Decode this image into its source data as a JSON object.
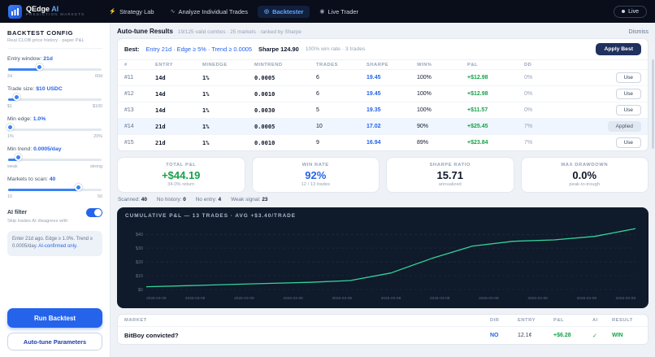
{
  "header": {
    "logo_name": "QEdge",
    "logo_ai": "AI",
    "logo_subtitle": "PREDICTION MARKETS",
    "nav": [
      {
        "label": "Strategy Lab"
      },
      {
        "label": "Analyze Individual Trades"
      },
      {
        "label": "Backtester"
      },
      {
        "label": "Live Trader"
      }
    ],
    "live_button": "Live"
  },
  "sidebar": {
    "title": "BACKTEST CONFIG",
    "subtitle": "Real CLOB price history · paper P&L",
    "sliders": [
      {
        "label": "Entry window:",
        "value": "21d",
        "min": "2d",
        "max": "60d",
        "pct": 33
      },
      {
        "label": "Trade size:",
        "value": "$10 USDC",
        "min": "$1",
        "max": "$100",
        "pct": 9
      },
      {
        "label": "Min edge:",
        "value": "1.0%",
        "min": "1%",
        "max": "20%",
        "pct": 2
      },
      {
        "label": "Min trend:",
        "value": "0.0005/day",
        "min": "weak",
        "max": "strong",
        "pct": 10
      },
      {
        "label": "Markets to scan:",
        "value": "40",
        "min": "10",
        "max": "50",
        "pct": 75
      }
    ],
    "ai_filter": {
      "label": "AI filter",
      "desc": "Skip trades AI disagrees with",
      "state": "on"
    },
    "note": {
      "text": "Enter 21d ago. Edge ≥ 1.0%. Trend ≥ 0.0005/day.",
      "ai": "AI-confirmed only."
    },
    "run_button": "Run Backtest",
    "autotune_button": "Auto-tune Parameters"
  },
  "autotune": {
    "title": "Auto-tune Results",
    "meta": "19/125 valid combos · 25 markets · ranked by Sharpe",
    "dismiss": "Dismiss",
    "best": {
      "label": "Best:",
      "combo": "Entry 21d · Edge ≥ 5% · Trend ≥ 0.0005",
      "sharpe": "Sharpe 124.90",
      "detail": "100% win rate · 3 trades",
      "apply": "Apply Best"
    },
    "columns": [
      "#",
      "ENTRY",
      "MINEDGE",
      "MINTREND",
      "TRADES",
      "SHARPE",
      "WIN%",
      "P&L",
      "DD",
      ""
    ],
    "rows": [
      {
        "id": "#11",
        "entry": "14d",
        "edge": "1%",
        "trend": "0.0005",
        "trades": "6",
        "sharpe": "19.45",
        "win": "100%",
        "pnl": "+$12.98",
        "dd": "0%",
        "action": "Use"
      },
      {
        "id": "#12",
        "entry": "14d",
        "edge": "1%",
        "trend": "0.0010",
        "trades": "6",
        "sharpe": "19.45",
        "win": "100%",
        "pnl": "+$12.98",
        "dd": "0%",
        "action": "Use"
      },
      {
        "id": "#13",
        "entry": "14d",
        "edge": "1%",
        "trend": "0.0030",
        "trades": "5",
        "sharpe": "19.35",
        "win": "100%",
        "pnl": "+$11.57",
        "dd": "0%",
        "action": "Use"
      },
      {
        "id": "#14",
        "entry": "21d",
        "edge": "1%",
        "trend": "0.0005",
        "trades": "10",
        "sharpe": "17.02",
        "win": "90%",
        "pnl": "+$25.45",
        "dd": "7%",
        "action": "Applied"
      },
      {
        "id": "#15",
        "entry": "21d",
        "edge": "1%",
        "trend": "0.0010",
        "trades": "9",
        "sharpe": "16.94",
        "win": "89%",
        "pnl": "+$23.84",
        "dd": "7%",
        "action": "Use"
      }
    ]
  },
  "stats": [
    {
      "label": "TOTAL P&L",
      "value": "+$44.19",
      "sub": "34.0% return",
      "color": "green"
    },
    {
      "label": "WIN RATE",
      "value": "92%",
      "sub": "12 / 13 trades",
      "color": "blue"
    },
    {
      "label": "SHARPE RATIO",
      "value": "15.71",
      "sub": "annualized",
      "color": "dark"
    },
    {
      "label": "MAX DRAWDOWN",
      "value": "0.0%",
      "sub": "peak-to-trough",
      "color": "dark"
    }
  ],
  "scan": {
    "items": [
      {
        "label": "Scanned:",
        "value": "40"
      },
      {
        "label": "No history:",
        "value": "0"
      },
      {
        "label": "No entry:",
        "value": "4"
      },
      {
        "label": "Weak signal:",
        "value": "23"
      }
    ]
  },
  "chart_data": {
    "type": "line",
    "title": "CUMULATIVE P&L — 13 TRADES · AVG +$3.40/TRADE",
    "ylim": [
      0,
      46
    ],
    "line_color": "#34d399",
    "yticks": [
      {
        "value": 0,
        "label": "$0"
      },
      {
        "value": 10,
        "label": "$10"
      },
      {
        "value": 20,
        "label": "$20"
      },
      {
        "value": 30,
        "label": "$30"
      },
      {
        "value": 40,
        "label": "$40"
      }
    ],
    "x_ticks": [
      "2026-03-08",
      "2026-03-08",
      "2026-03-08",
      "2026-03-08",
      "2026-03-08",
      "2026-03-08",
      "2026-03-08",
      "2026-03-08",
      "2026-03-08",
      "2026-03-08",
      "2026-03-08"
    ],
    "values": [
      2.0,
      2.8,
      3.6,
      4.4,
      5.2,
      6.5,
      12.0,
      22.5,
      31.5,
      35.0,
      36.0,
      38.5,
      44.19
    ]
  },
  "market_table": {
    "market_col": "MARKET",
    "cols": {
      "dir": "DIR",
      "entry": "ENTRY",
      "pnl": "P&L",
      "ai": "AI",
      "result": "RESULT"
    },
    "rows": [
      {
        "market": "BitBoy convicted?",
        "dir": "NO",
        "entry": "12.1¢",
        "pnl": "+$6.28",
        "ai": "✓",
        "result": "WIN"
      }
    ]
  }
}
